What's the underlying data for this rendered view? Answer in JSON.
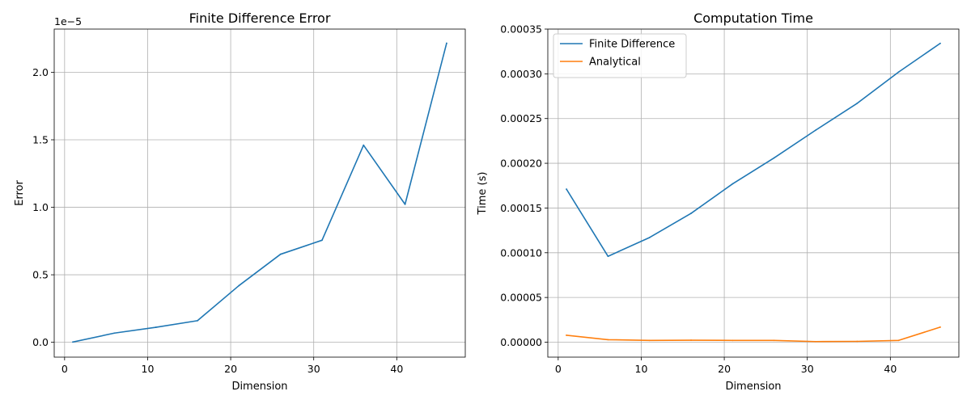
{
  "chart_data": [
    {
      "type": "line",
      "title": "Finite Difference Error",
      "xlabel": "Dimension",
      "ylabel": "Error",
      "offset_text": "1e−5",
      "xlim": [
        -1.25,
        48.25
      ],
      "ylim": [
        -1.1e-06,
        2.32e-05
      ],
      "xticks": [
        0,
        10,
        20,
        30,
        40
      ],
      "xtick_labels": [
        "0",
        "10",
        "20",
        "30",
        "40"
      ],
      "yticks": [
        0,
        5e-06,
        1e-05,
        1.5e-05,
        2e-05
      ],
      "ytick_labels": [
        "0.0",
        "0.5",
        "1.0",
        "1.5",
        "2.0"
      ],
      "grid": true,
      "legend": null,
      "x": [
        1,
        6,
        11,
        16,
        21,
        26,
        31,
        36,
        41,
        46
      ],
      "series": [
        {
          "color": "#1f77b4",
          "values": [
            2e-08,
            6.8e-07,
            1.11e-06,
            1.6e-06,
            4.2e-06,
            6.52e-06,
            7.56e-06,
            1.46e-05,
            1.022e-05,
            2.215e-05
          ]
        }
      ]
    },
    {
      "type": "line",
      "title": "Computation Time",
      "xlabel": "Dimension",
      "ylabel": "Time (s)",
      "xlim": [
        -1.25,
        48.25
      ],
      "ylim": [
        -1.67e-05,
        0.00035
      ],
      "xticks": [
        0,
        10,
        20,
        30,
        40
      ],
      "xtick_labels": [
        "0",
        "10",
        "20",
        "30",
        "40"
      ],
      "yticks": [
        0,
        5e-05,
        0.0001,
        0.00015,
        0.0002,
        0.00025,
        0.0003,
        0.00035
      ],
      "ytick_labels": [
        "0.00000",
        "0.00005",
        "0.00010",
        "0.00015",
        "0.00020",
        "0.00025",
        "0.00030",
        "0.00035"
      ],
      "grid": true,
      "legend": "top-left",
      "x": [
        1,
        6,
        11,
        16,
        21,
        26,
        31,
        36,
        41,
        46
      ],
      "series": [
        {
          "name": "Finite Difference",
          "color": "#1f77b4",
          "values": [
            0.000171,
            9.6e-05,
            0.000117,
            0.000144,
            0.000177,
            0.000206,
            0.000237,
            0.000267,
            0.000302,
            0.000334
          ]
        },
        {
          "name": "Analytical",
          "color": "#ff7f0e",
          "values": [
            7.8e-06,
            2.8e-06,
            2e-06,
            2.2e-06,
            2e-06,
            2e-06,
            7e-07,
            9e-07,
            2e-06,
            1.68e-05
          ]
        }
      ]
    }
  ]
}
